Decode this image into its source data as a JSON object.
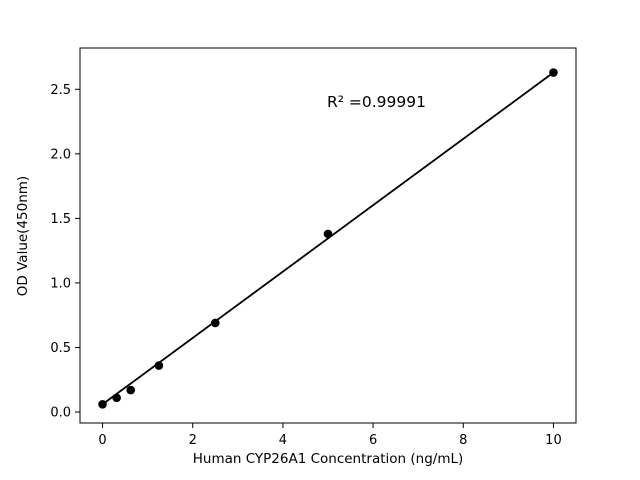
{
  "chart_data": {
    "type": "scatter",
    "title": "",
    "xlabel": "Human CYP26A1 Concentration (ng/mL)",
    "ylabel": "OD Value(450nm)",
    "annotation": "R² =0.99991",
    "x": [
      0,
      0.3125,
      0.625,
      1.25,
      2.5,
      5,
      10
    ],
    "y": [
      0.06,
      0.11,
      0.17,
      0.36,
      0.69,
      1.38,
      2.63
    ],
    "xlim": [
      -0.5,
      10.5
    ],
    "ylim": [
      -0.085,
      2.82
    ],
    "xticks": [
      0,
      2,
      4,
      6,
      8,
      10
    ],
    "xtick_labels": [
      "0",
      "2",
      "4",
      "6",
      "8",
      "10"
    ],
    "yticks": [
      0,
      0.5,
      1.0,
      1.5,
      2.0,
      2.5
    ],
    "ytick_labels": [
      "0.0",
      "0.5",
      "1.0",
      "1.5",
      "2.0",
      "2.5"
    ],
    "grid": false,
    "legend": null,
    "line_color": "#000000",
    "marker_color": "#000000",
    "background_color": "#ffffff",
    "marker_style": "filled-circle"
  }
}
